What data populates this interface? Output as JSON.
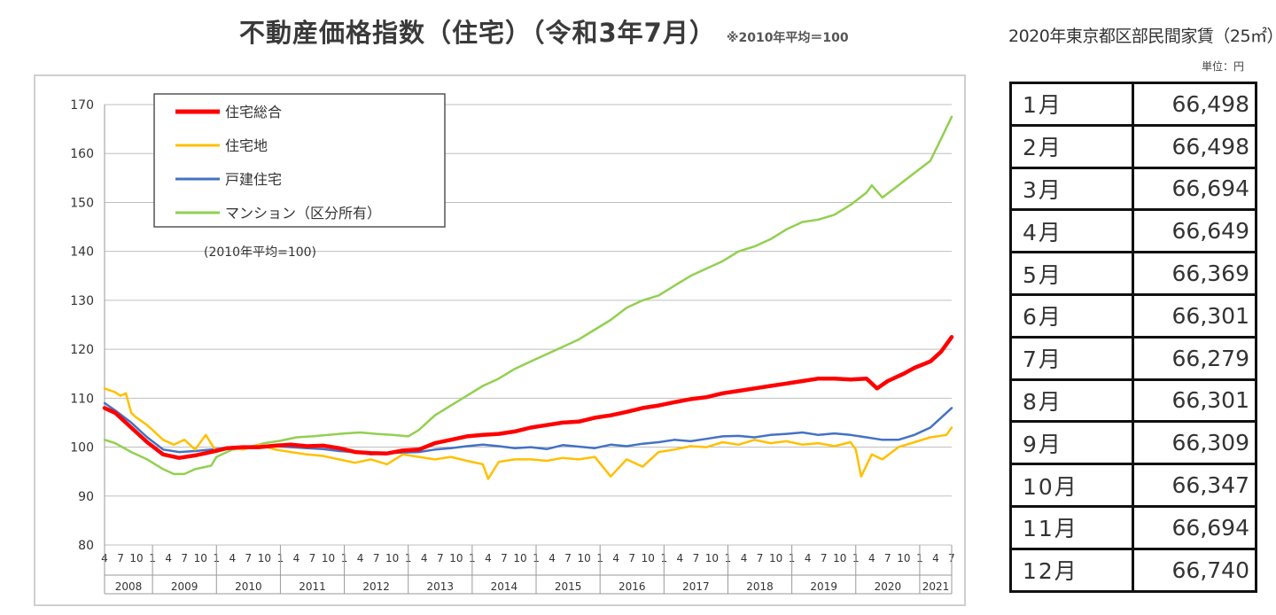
{
  "chart_title": "不動産価格指数（住宅）（令和3年7月）",
  "chart_note": "※2010年平均＝100",
  "chart_data": {
    "type": "line",
    "ylim": [
      80,
      170
    ],
    "yticks": [
      80,
      90,
      100,
      110,
      120,
      130,
      140,
      150,
      160,
      170
    ],
    "month_ticks": [
      "4",
      "7",
      "10",
      "1"
    ],
    "years": [
      "2008",
      "2009",
      "2010",
      "2011",
      "2012",
      "2013",
      "2014",
      "2015",
      "2016",
      "2017",
      "2018",
      "2019",
      "2020",
      "2021"
    ],
    "x_start": "2008-04",
    "x_end": "2021-07",
    "base_note": "(2010年平均=100)",
    "series": [
      {
        "name": "住宅総合",
        "color": "#ff0000",
        "points": [
          [
            "2008-04",
            108
          ],
          [
            "2008-06",
            107
          ],
          [
            "2008-09",
            104
          ],
          [
            "2008-12",
            101
          ],
          [
            "2009-03",
            98.5
          ],
          [
            "2009-06",
            97.8
          ],
          [
            "2009-09",
            98.3
          ],
          [
            "2009-12",
            99
          ],
          [
            "2010-03",
            99.8
          ],
          [
            "2010-06",
            100
          ],
          [
            "2010-09",
            100
          ],
          [
            "2010-12",
            100.3
          ],
          [
            "2011-03",
            100.5
          ],
          [
            "2011-06",
            100.2
          ],
          [
            "2011-09",
            100.3
          ],
          [
            "2011-12",
            99.8
          ],
          [
            "2012-03",
            99
          ],
          [
            "2012-06",
            98.8
          ],
          [
            "2012-09",
            98.7
          ],
          [
            "2012-12",
            99.3
          ],
          [
            "2013-03",
            99.5
          ],
          [
            "2013-06",
            100.8
          ],
          [
            "2013-09",
            101.5
          ],
          [
            "2013-12",
            102.2
          ],
          [
            "2014-03",
            102.5
          ],
          [
            "2014-06",
            102.7
          ],
          [
            "2014-09",
            103.2
          ],
          [
            "2014-12",
            104
          ],
          [
            "2015-03",
            104.5
          ],
          [
            "2015-06",
            105
          ],
          [
            "2015-09",
            105.2
          ],
          [
            "2015-12",
            106
          ],
          [
            "2016-03",
            106.5
          ],
          [
            "2016-06",
            107.2
          ],
          [
            "2016-09",
            108
          ],
          [
            "2016-12",
            108.5
          ],
          [
            "2017-03",
            109.2
          ],
          [
            "2017-06",
            109.8
          ],
          [
            "2017-09",
            110.2
          ],
          [
            "2017-12",
            111
          ],
          [
            "2018-03",
            111.5
          ],
          [
            "2018-06",
            112
          ],
          [
            "2018-09",
            112.5
          ],
          [
            "2018-12",
            113
          ],
          [
            "2019-03",
            113.5
          ],
          [
            "2019-06",
            114
          ],
          [
            "2019-09",
            114
          ],
          [
            "2019-12",
            113.8
          ],
          [
            "2020-03",
            114
          ],
          [
            "2020-05",
            112
          ],
          [
            "2020-07",
            113.5
          ],
          [
            "2020-10",
            115
          ],
          [
            "2020-12",
            116.2
          ],
          [
            "2021-03",
            117.5
          ],
          [
            "2021-05",
            119.5
          ],
          [
            "2021-07",
            122.5
          ]
        ]
      },
      {
        "name": "住宅地",
        "color": "#ffc000",
        "points": [
          [
            "2008-04",
            112
          ],
          [
            "2008-06",
            111.2
          ],
          [
            "2008-07",
            110.5
          ],
          [
            "2008-08",
            111
          ],
          [
            "2008-09",
            107
          ],
          [
            "2008-10",
            106
          ],
          [
            "2008-12",
            104.5
          ],
          [
            "2009-03",
            101.5
          ],
          [
            "2009-05",
            100.5
          ],
          [
            "2009-07",
            101.5
          ],
          [
            "2009-09",
            99.5
          ],
          [
            "2009-11",
            102.5
          ],
          [
            "2010-01",
            99
          ],
          [
            "2010-03",
            100
          ],
          [
            "2010-06",
            99.5
          ],
          [
            "2010-09",
            100.5
          ],
          [
            "2010-12",
            99.5
          ],
          [
            "2011-03",
            99
          ],
          [
            "2011-06",
            98.5
          ],
          [
            "2011-09",
            98.2
          ],
          [
            "2011-12",
            97.5
          ],
          [
            "2012-03",
            96.8
          ],
          [
            "2012-06",
            97.5
          ],
          [
            "2012-09",
            96.5
          ],
          [
            "2012-12",
            98.5
          ],
          [
            "2013-03",
            98
          ],
          [
            "2013-06",
            97.5
          ],
          [
            "2013-09",
            98
          ],
          [
            "2013-12",
            97.2
          ],
          [
            "2014-03",
            96.5
          ],
          [
            "2014-04",
            93.5
          ],
          [
            "2014-06",
            97
          ],
          [
            "2014-09",
            97.5
          ],
          [
            "2014-12",
            97.5
          ],
          [
            "2015-03",
            97.2
          ],
          [
            "2015-06",
            97.8
          ],
          [
            "2015-09",
            97.5
          ],
          [
            "2015-12",
            98
          ],
          [
            "2016-03",
            94
          ],
          [
            "2016-06",
            97.5
          ],
          [
            "2016-09",
            96
          ],
          [
            "2016-12",
            99
          ],
          [
            "2017-03",
            99.5
          ],
          [
            "2017-06",
            100.2
          ],
          [
            "2017-09",
            100
          ],
          [
            "2017-12",
            101
          ],
          [
            "2018-03",
            100.5
          ],
          [
            "2018-06",
            101.5
          ],
          [
            "2018-09",
            100.8
          ],
          [
            "2018-12",
            101.2
          ],
          [
            "2019-03",
            100.5
          ],
          [
            "2019-06",
            100.8
          ],
          [
            "2019-09",
            100.2
          ],
          [
            "2019-12",
            101
          ],
          [
            "2020-01",
            99.5
          ],
          [
            "2020-02",
            94
          ],
          [
            "2020-04",
            98.5
          ],
          [
            "2020-06",
            97.5
          ],
          [
            "2020-09",
            100
          ],
          [
            "2020-12",
            101
          ],
          [
            "2021-03",
            102
          ],
          [
            "2021-06",
            102.5
          ],
          [
            "2021-07",
            104
          ]
        ]
      },
      {
        "name": "戸建住宅",
        "color": "#4472c4",
        "points": [
          [
            "2008-04",
            109
          ],
          [
            "2008-06",
            107.5
          ],
          [
            "2008-09",
            105
          ],
          [
            "2008-12",
            102
          ],
          [
            "2009-03",
            99.5
          ],
          [
            "2009-06",
            99
          ],
          [
            "2009-09",
            99.2
          ],
          [
            "2009-12",
            99.5
          ],
          [
            "2010-03",
            99.8
          ],
          [
            "2010-06",
            100
          ],
          [
            "2010-09",
            100.1
          ],
          [
            "2010-12",
            100.2
          ],
          [
            "2011-03",
            100
          ],
          [
            "2011-06",
            99.8
          ],
          [
            "2011-09",
            99.6
          ],
          [
            "2011-12",
            99.2
          ],
          [
            "2012-03",
            99
          ],
          [
            "2012-06",
            98.5
          ],
          [
            "2012-09",
            98.8
          ],
          [
            "2012-12",
            98.9
          ],
          [
            "2013-03",
            99
          ],
          [
            "2013-06",
            99.5
          ],
          [
            "2013-09",
            99.8
          ],
          [
            "2013-12",
            100.2
          ],
          [
            "2014-03",
            100.5
          ],
          [
            "2014-06",
            100.2
          ],
          [
            "2014-09",
            99.8
          ],
          [
            "2014-12",
            100
          ],
          [
            "2015-03",
            99.6
          ],
          [
            "2015-06",
            100.4
          ],
          [
            "2015-09",
            100.1
          ],
          [
            "2015-12",
            99.8
          ],
          [
            "2016-03",
            100.5
          ],
          [
            "2016-06",
            100.2
          ],
          [
            "2016-09",
            100.7
          ],
          [
            "2016-12",
            101
          ],
          [
            "2017-03",
            101.5
          ],
          [
            "2017-06",
            101.2
          ],
          [
            "2017-09",
            101.7
          ],
          [
            "2017-12",
            102.2
          ],
          [
            "2018-03",
            102.3
          ],
          [
            "2018-06",
            102
          ],
          [
            "2018-09",
            102.5
          ],
          [
            "2018-12",
            102.7
          ],
          [
            "2019-03",
            103
          ],
          [
            "2019-06",
            102.5
          ],
          [
            "2019-09",
            102.8
          ],
          [
            "2019-12",
            102.5
          ],
          [
            "2020-03",
            102
          ],
          [
            "2020-06",
            101.5
          ],
          [
            "2020-09",
            101.5
          ],
          [
            "2020-12",
            102.5
          ],
          [
            "2021-03",
            104
          ],
          [
            "2021-05",
            106
          ],
          [
            "2021-07",
            108
          ]
        ]
      },
      {
        "name": "マンション（区分所有）",
        "color": "#92d050",
        "points": [
          [
            "2008-04",
            101.5
          ],
          [
            "2008-06",
            100.8
          ],
          [
            "2008-09",
            99
          ],
          [
            "2008-12",
            97.5
          ],
          [
            "2009-03",
            95.5
          ],
          [
            "2009-05",
            94.5
          ],
          [
            "2009-07",
            94.5
          ],
          [
            "2009-09",
            95.5
          ],
          [
            "2009-12",
            96.2
          ],
          [
            "2010-01",
            98
          ],
          [
            "2010-04",
            99.5
          ],
          [
            "2010-07",
            100
          ],
          [
            "2010-10",
            100.8
          ],
          [
            "2011-01",
            101.3
          ],
          [
            "2011-04",
            102
          ],
          [
            "2011-07",
            102.2
          ],
          [
            "2011-10",
            102.5
          ],
          [
            "2012-01",
            102.8
          ],
          [
            "2012-04",
            103
          ],
          [
            "2012-07",
            102.7
          ],
          [
            "2012-10",
            102.5
          ],
          [
            "2013-01",
            102.2
          ],
          [
            "2013-03",
            103.5
          ],
          [
            "2013-06",
            106.5
          ],
          [
            "2013-09",
            108.5
          ],
          [
            "2013-12",
            110.5
          ],
          [
            "2014-03",
            112.5
          ],
          [
            "2014-06",
            114
          ],
          [
            "2014-09",
            116
          ],
          [
            "2014-12",
            117.5
          ],
          [
            "2015-03",
            119
          ],
          [
            "2015-06",
            120.5
          ],
          [
            "2015-09",
            122
          ],
          [
            "2015-12",
            124
          ],
          [
            "2016-03",
            126
          ],
          [
            "2016-06",
            128.5
          ],
          [
            "2016-09",
            130
          ],
          [
            "2016-12",
            131
          ],
          [
            "2017-03",
            133
          ],
          [
            "2017-06",
            135
          ],
          [
            "2017-09",
            136.5
          ],
          [
            "2017-12",
            138
          ],
          [
            "2018-03",
            140
          ],
          [
            "2018-06",
            141
          ],
          [
            "2018-09",
            142.5
          ],
          [
            "2018-12",
            144.5
          ],
          [
            "2019-03",
            146
          ],
          [
            "2019-06",
            146.5
          ],
          [
            "2019-09",
            147.5
          ],
          [
            "2019-12",
            149.5
          ],
          [
            "2020-03",
            152
          ],
          [
            "2020-04",
            153.5
          ],
          [
            "2020-06",
            151
          ],
          [
            "2020-09",
            153.5
          ],
          [
            "2020-12",
            156
          ],
          [
            "2021-03",
            158.5
          ],
          [
            "2021-05",
            163
          ],
          [
            "2021-07",
            167.5
          ]
        ]
      }
    ]
  },
  "rent_table": {
    "title": "2020年東京都区部民間家賃（25㎡）",
    "unit": "単位：円",
    "rows": [
      {
        "month": "1月",
        "rent": "66,498"
      },
      {
        "month": "2月",
        "rent": "66,498"
      },
      {
        "month": "3月",
        "rent": "66,694"
      },
      {
        "month": "4月",
        "rent": "66,649"
      },
      {
        "month": "5月",
        "rent": "66,369"
      },
      {
        "month": "6月",
        "rent": "66,301"
      },
      {
        "month": "7月",
        "rent": "66,279"
      },
      {
        "month": "8月",
        "rent": "66,301"
      },
      {
        "month": "9月",
        "rent": "66,309"
      },
      {
        "month": "10月",
        "rent": "66,347"
      },
      {
        "month": "11月",
        "rent": "66,694"
      },
      {
        "month": "12月",
        "rent": "66,740"
      }
    ]
  }
}
